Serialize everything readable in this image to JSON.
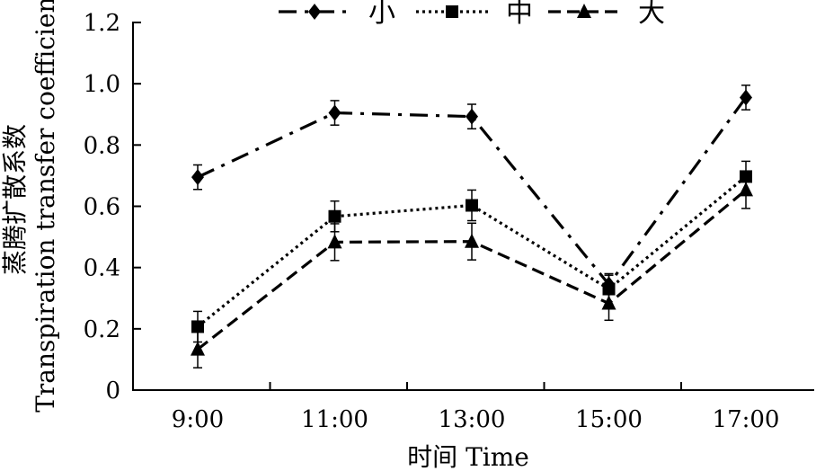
{
  "chart_data": {
    "type": "line",
    "title": "",
    "xlabel": "时间 Time",
    "ylabel_cn": "蒸腾扩散系数",
    "ylabel_en": "Transpiration transfer coefficient",
    "categories": [
      "9:00",
      "11:00",
      "13:00",
      "15:00",
      "17:00"
    ],
    "ylim": [
      0,
      1.2
    ],
    "yticks": [
      "0",
      "0.2",
      "0.4",
      "0.6",
      "0.8",
      "1.0",
      "1.2"
    ],
    "ytick_values": [
      0,
      0.2,
      0.4,
      0.6,
      0.8,
      1.0,
      1.2
    ],
    "grid": false,
    "legend_position": "top",
    "series": [
      {
        "name": "小",
        "marker": "diamond",
        "line_style": "dash-dot",
        "values": [
          0.695,
          0.905,
          0.893,
          0.345,
          0.955
        ],
        "errors": [
          0.04,
          0.04,
          0.04,
          0.03,
          0.04
        ]
      },
      {
        "name": "中",
        "marker": "square",
        "line_style": "dotted",
        "values": [
          0.207,
          0.567,
          0.603,
          0.33,
          0.697
        ],
        "errors": [
          0.05,
          0.05,
          0.05,
          0.05,
          0.05
        ]
      },
      {
        "name": "大",
        "marker": "triangle",
        "line_style": "dashed",
        "values": [
          0.133,
          0.483,
          0.485,
          0.283,
          0.653
        ],
        "errors": [
          0.06,
          0.06,
          0.06,
          0.055,
          0.06
        ]
      }
    ],
    "colors": {
      "line": "#000000",
      "background": "#ffffff"
    }
  }
}
